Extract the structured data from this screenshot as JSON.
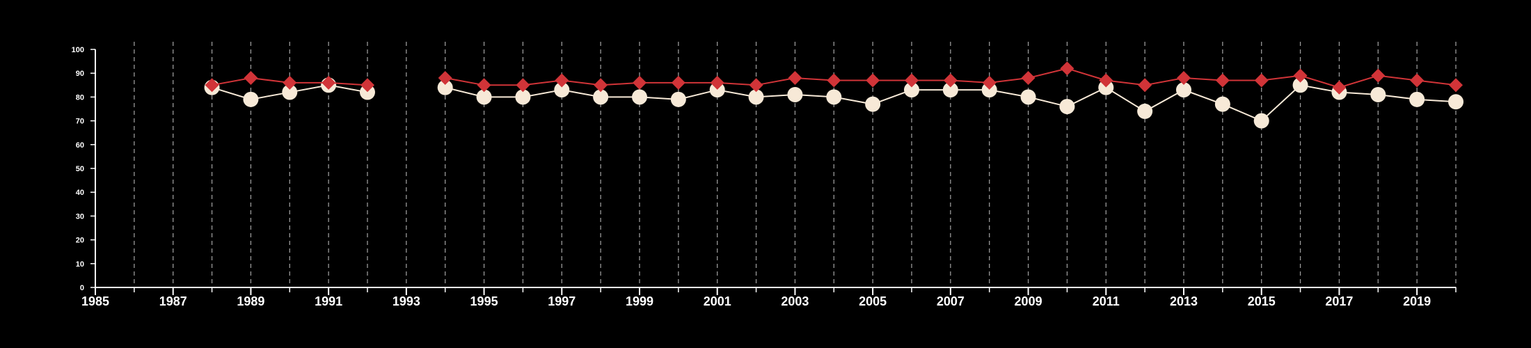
{
  "chart_data": {
    "type": "line",
    "x": [
      1988,
      1989,
      1990,
      1991,
      1992,
      1993,
      1994,
      1995,
      1996,
      1997,
      1998,
      1999,
      2000,
      2001,
      2002,
      2003,
      2004,
      2005,
      2006,
      2007,
      2008,
      2009,
      2010,
      2011,
      2012,
      2013,
      2014,
      2015,
      2016,
      2017,
      2018,
      2019,
      2020
    ],
    "series": [
      {
        "values": [
          85,
          88,
          86,
          86,
          85,
          null,
          88,
          85,
          85,
          87,
          85,
          86,
          86,
          86,
          85,
          88,
          87,
          87,
          87,
          87,
          86,
          88,
          92,
          87,
          85,
          88,
          87,
          87,
          89,
          84,
          89,
          87,
          85
        ],
        "color": "#d13438",
        "marker": "diamond"
      },
      {
        "values": [
          84,
          79,
          82,
          85,
          82,
          null,
          84,
          80,
          80,
          83,
          80,
          80,
          79,
          83,
          80,
          81,
          80,
          77,
          83,
          83,
          83,
          80,
          76,
          84,
          74,
          83,
          77,
          70,
          85,
          82,
          81,
          79,
          78
        ],
        "color": "#f7e9d7",
        "marker": "circle"
      }
    ],
    "xlim": [
      1985,
      2020
    ],
    "ylim": [
      0,
      100
    ],
    "xticks": [
      "1985",
      "1987",
      "1989",
      "1991",
      "1993",
      "1995",
      "1997",
      "1999",
      "2001",
      "2003",
      "2005",
      "2007",
      "2009",
      "2011",
      "2013",
      "2015",
      "2017",
      "2019"
    ],
    "yticks": [
      "0",
      "10",
      "20",
      "30",
      "40",
      "50",
      "60",
      "70",
      "80",
      "90",
      "100"
    ],
    "vertical_grid": "dashed, every year",
    "background": "#000000",
    "axis_color": "#ffffff"
  }
}
